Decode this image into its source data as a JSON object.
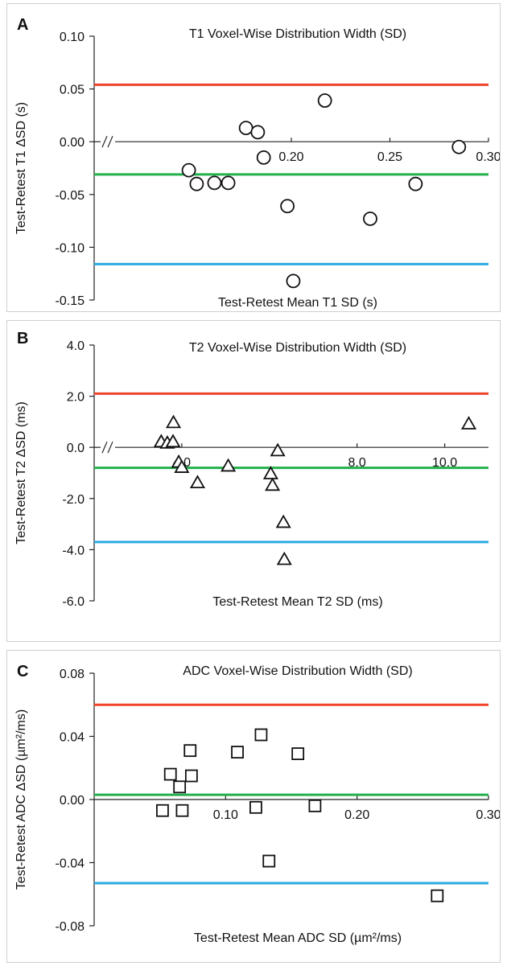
{
  "chart_data": [
    {
      "type": "scatter",
      "panel_letter": "A",
      "title": "T1 Voxel-Wise Distribution Width (SD)",
      "xlabel": "Test-Retest Mean T1 SD (s)",
      "ylabel": "Test-Retest T1 ΔSD (s)",
      "xlim": [
        0.1,
        0.3
      ],
      "ylim": [
        -0.15,
        0.1
      ],
      "xticks": [
        "0.20",
        "0.25",
        "0.30"
      ],
      "xtick_values": [
        0.2,
        0.25,
        0.3
      ],
      "yticks": [
        "0.10",
        "0.05",
        "0.00",
        "-0.05",
        "-0.10",
        "-0.15"
      ],
      "ytick_values": [
        0.1,
        0.05,
        0.0,
        -0.05,
        -0.1,
        -0.15
      ],
      "axis_break": true,
      "marker": "circle",
      "series": [
        {
          "x": [
            0.148,
            0.152,
            0.161,
            0.168,
            0.177,
            0.183,
            0.186,
            0.198,
            0.217,
            0.24,
            0.263,
            0.285
          ],
          "y": [
            -0.027,
            -0.04,
            -0.039,
            -0.039,
            0.013,
            0.009,
            -0.015,
            -0.061,
            0.039,
            -0.073,
            -0.04,
            -0.005
          ]
        }
      ],
      "extra_points": [
        {
          "x": 0.201,
          "y": -0.132
        }
      ],
      "reference_lines": [
        {
          "y": 0.054,
          "color": "#f0432a"
        },
        {
          "y": -0.031,
          "color": "#22b14c"
        },
        {
          "y": -0.116,
          "color": "#29abe2"
        }
      ]
    },
    {
      "type": "scatter",
      "panel_letter": "B",
      "title": "T2 Voxel-Wise Distribution Width (SD)",
      "xlabel": "Test-Retest Mean T2 SD (ms)",
      "ylabel": "Test-Retest T2 ΔSD (ms)",
      "xlim": [
        2.0,
        11.0
      ],
      "ylim": [
        -6.0,
        4.0
      ],
      "xticks": [
        "4.0",
        "8.0",
        "10.0"
      ],
      "xtick_values": [
        4.0,
        8.0,
        10.0
      ],
      "yticks": [
        "4.0",
        "2.0",
        "0.0",
        "-2.0",
        "-4.0",
        "-6.0"
      ],
      "ytick_values": [
        4.0,
        2.0,
        0.0,
        -2.0,
        -4.0,
        -6.0
      ],
      "axis_break": true,
      "marker": "triangle",
      "series": [
        {
          "x": [
            3.53,
            3.67,
            3.8,
            3.81,
            3.93,
            4.0,
            4.36,
            5.06,
            6.03,
            6.07,
            6.19,
            6.32,
            6.34,
            10.55
          ],
          "y": [
            0.25,
            0.2,
            0.25,
            1.0,
            -0.55,
            -0.75,
            -1.35,
            -0.7,
            -1.0,
            -1.45,
            -0.1,
            -2.9,
            -4.35,
            0.95
          ]
        }
      ],
      "reference_lines": [
        {
          "y": 2.1,
          "color": "#f0432a"
        },
        {
          "y": -0.8,
          "color": "#22b14c"
        },
        {
          "y": -3.7,
          "color": "#29abe2"
        }
      ]
    },
    {
      "type": "scatter",
      "panel_letter": "C",
      "title": "ADC Voxel-Wise Distribution Width (SD)",
      "xlabel": "Test-Retest Mean ADC SD (µm²/ms)",
      "ylabel": "Test-Retest ADC ΔSD (µm²/ms)",
      "xlim": [
        0.0,
        0.3
      ],
      "ylim": [
        -0.08,
        0.08
      ],
      "xticks": [
        "0.10",
        "0.20",
        "0.30"
      ],
      "xtick_values": [
        0.1,
        0.2,
        0.3
      ],
      "yticks": [
        "0.08",
        "0.04",
        "0.00",
        "-0.04",
        "-0.08"
      ],
      "ytick_values": [
        0.08,
        0.04,
        0.0,
        -0.04,
        -0.08
      ],
      "axis_break": false,
      "marker": "square",
      "series": [
        {
          "x": [
            0.052,
            0.058,
            0.065,
            0.067,
            0.073,
            0.074,
            0.109,
            0.123,
            0.127,
            0.133,
            0.155,
            0.168,
            0.261
          ],
          "y": [
            -0.007,
            0.016,
            0.008,
            -0.007,
            0.031,
            0.015,
            0.03,
            -0.005,
            0.041,
            -0.039,
            0.029,
            -0.004,
            -0.061
          ]
        }
      ],
      "reference_lines": [
        {
          "y": 0.06,
          "color": "#f0432a"
        },
        {
          "y": 0.003,
          "color": "#22b14c"
        },
        {
          "y": -0.053,
          "color": "#29abe2"
        }
      ]
    }
  ]
}
